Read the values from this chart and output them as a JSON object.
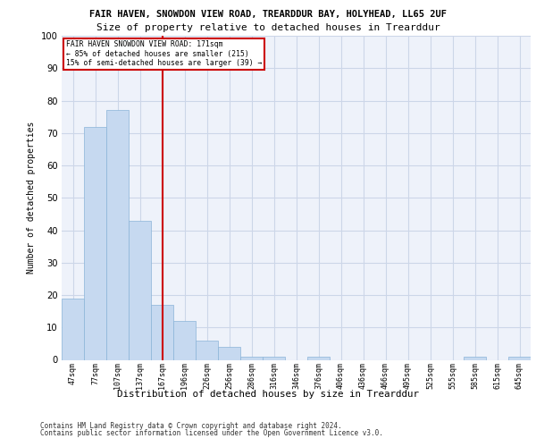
{
  "title1": "FAIR HAVEN, SNOWDON VIEW ROAD, TREARDDUR BAY, HOLYHEAD, LL65 2UF",
  "title2": "Size of property relative to detached houses in Trearddur",
  "xlabel": "Distribution of detached houses by size in Trearddur",
  "ylabel": "Number of detached properties",
  "categories": [
    "47sqm",
    "77sqm",
    "107sqm",
    "137sqm",
    "167sqm",
    "196sqm",
    "226sqm",
    "256sqm",
    "286sqm",
    "316sqm",
    "346sqm",
    "376sqm",
    "406sqm",
    "436sqm",
    "466sqm",
    "495sqm",
    "525sqm",
    "555sqm",
    "585sqm",
    "615sqm",
    "645sqm"
  ],
  "values": [
    19,
    72,
    77,
    43,
    17,
    12,
    6,
    4,
    1,
    1,
    0,
    1,
    0,
    0,
    0,
    0,
    0,
    0,
    1,
    0,
    1
  ],
  "bar_color": "#c6d9f0",
  "bar_edge_color": "#8ab4d8",
  "red_line_index": 4,
  "red_line_color": "#cc0000",
  "ylim": [
    0,
    100
  ],
  "yticks": [
    0,
    10,
    20,
    30,
    40,
    50,
    60,
    70,
    80,
    90,
    100
  ],
  "annotation_line1": "FAIR HAVEN SNOWDON VIEW ROAD: 171sqm",
  "annotation_line2": "← 85% of detached houses are smaller (215)",
  "annotation_line3": "15% of semi-detached houses are larger (39) →",
  "footer1": "Contains HM Land Registry data © Crown copyright and database right 2024.",
  "footer2": "Contains public sector information licensed under the Open Government Licence v3.0.",
  "bg_color": "#eef2fa",
  "grid_color": "#ccd6e8"
}
